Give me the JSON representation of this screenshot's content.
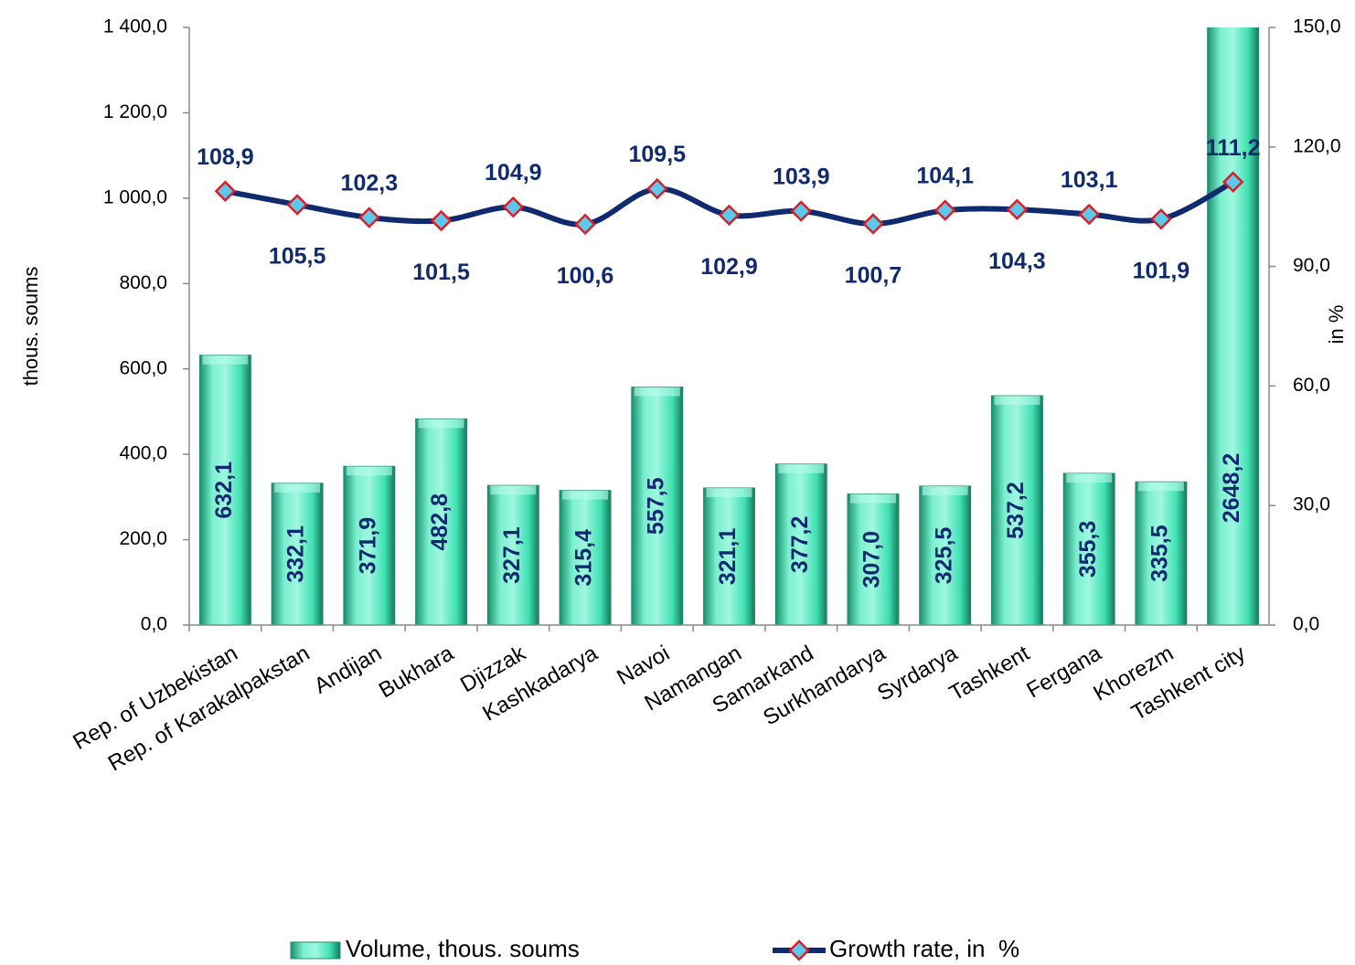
{
  "chart_data": {
    "type": "combo",
    "categories": [
      "Rep. of Uzbekistan",
      "Rep. of Karakalpakstan",
      "Andijan",
      "Bukhara",
      "Djizzak",
      "Kashkadarya",
      "Navoi",
      "Namangan",
      "Samarkand",
      "Surkhandarya",
      "Syrdarya",
      "Tashkent",
      "Fergana",
      "Khorezm",
      "Tashkent city"
    ],
    "series": [
      {
        "name": "Volume, thous. soums",
        "type": "bar",
        "color": "#3ee0b2",
        "values": [
          632.1,
          332.1,
          371.9,
          482.8,
          327.1,
          315.4,
          557.5,
          321.1,
          377.2,
          307.0,
          325.5,
          537.2,
          355.3,
          335.5,
          2648.2
        ],
        "value_labels": [
          "632,1",
          "332,1",
          "371,9",
          "482,8",
          "327,1",
          "315,4",
          "557,5",
          "321,1",
          "377,2",
          "307,0",
          "325,5",
          "537,2",
          "355,3",
          "335,5",
          "2648,2"
        ]
      },
      {
        "name": "Growth rate, in  %",
        "type": "line",
        "axis": "y2",
        "color": "#0f2a6e",
        "marker_color": "#5cc8ea",
        "marker_edge_color": "#d8202a",
        "values": [
          108.9,
          105.5,
          102.3,
          101.5,
          104.9,
          100.6,
          109.5,
          102.9,
          103.9,
          100.7,
          104.1,
          104.3,
          103.1,
          101.9,
          111.2
        ],
        "value_labels": [
          "108,9",
          "105,5",
          "102,3",
          "101,5",
          "104,9",
          "100,6",
          "109,5",
          "102,9",
          "103,9",
          "100,7",
          "104,1",
          "104,3",
          "103,1",
          "101,9",
          "111,2"
        ]
      }
    ],
    "y_label": "thous. soums",
    "y2_label": "in %",
    "ylim": [
      0,
      1400
    ],
    "yticks": [
      {
        "value": 0,
        "label": "0,0"
      },
      {
        "value": 200,
        "label": "200,0"
      },
      {
        "value": 400,
        "label": "400,0"
      },
      {
        "value": 600,
        "label": "600,0"
      },
      {
        "value": 800,
        "label": "800,0"
      },
      {
        "value": 1000,
        "label": "1 000,0"
      },
      {
        "value": 1200,
        "label": "1 200,0"
      },
      {
        "value": 1400,
        "label": "1 400,0"
      }
    ],
    "y2lim": [
      0,
      150
    ],
    "y2ticks": [
      {
        "value": 0,
        "label": "0,0"
      },
      {
        "value": 30,
        "label": "30,0"
      },
      {
        "value": 60,
        "label": "60,0"
      },
      {
        "value": 90,
        "label": "90,0"
      },
      {
        "value": 120,
        "label": "120,0"
      },
      {
        "value": 150,
        "label": "150,0"
      }
    ],
    "legend": "bottom"
  }
}
